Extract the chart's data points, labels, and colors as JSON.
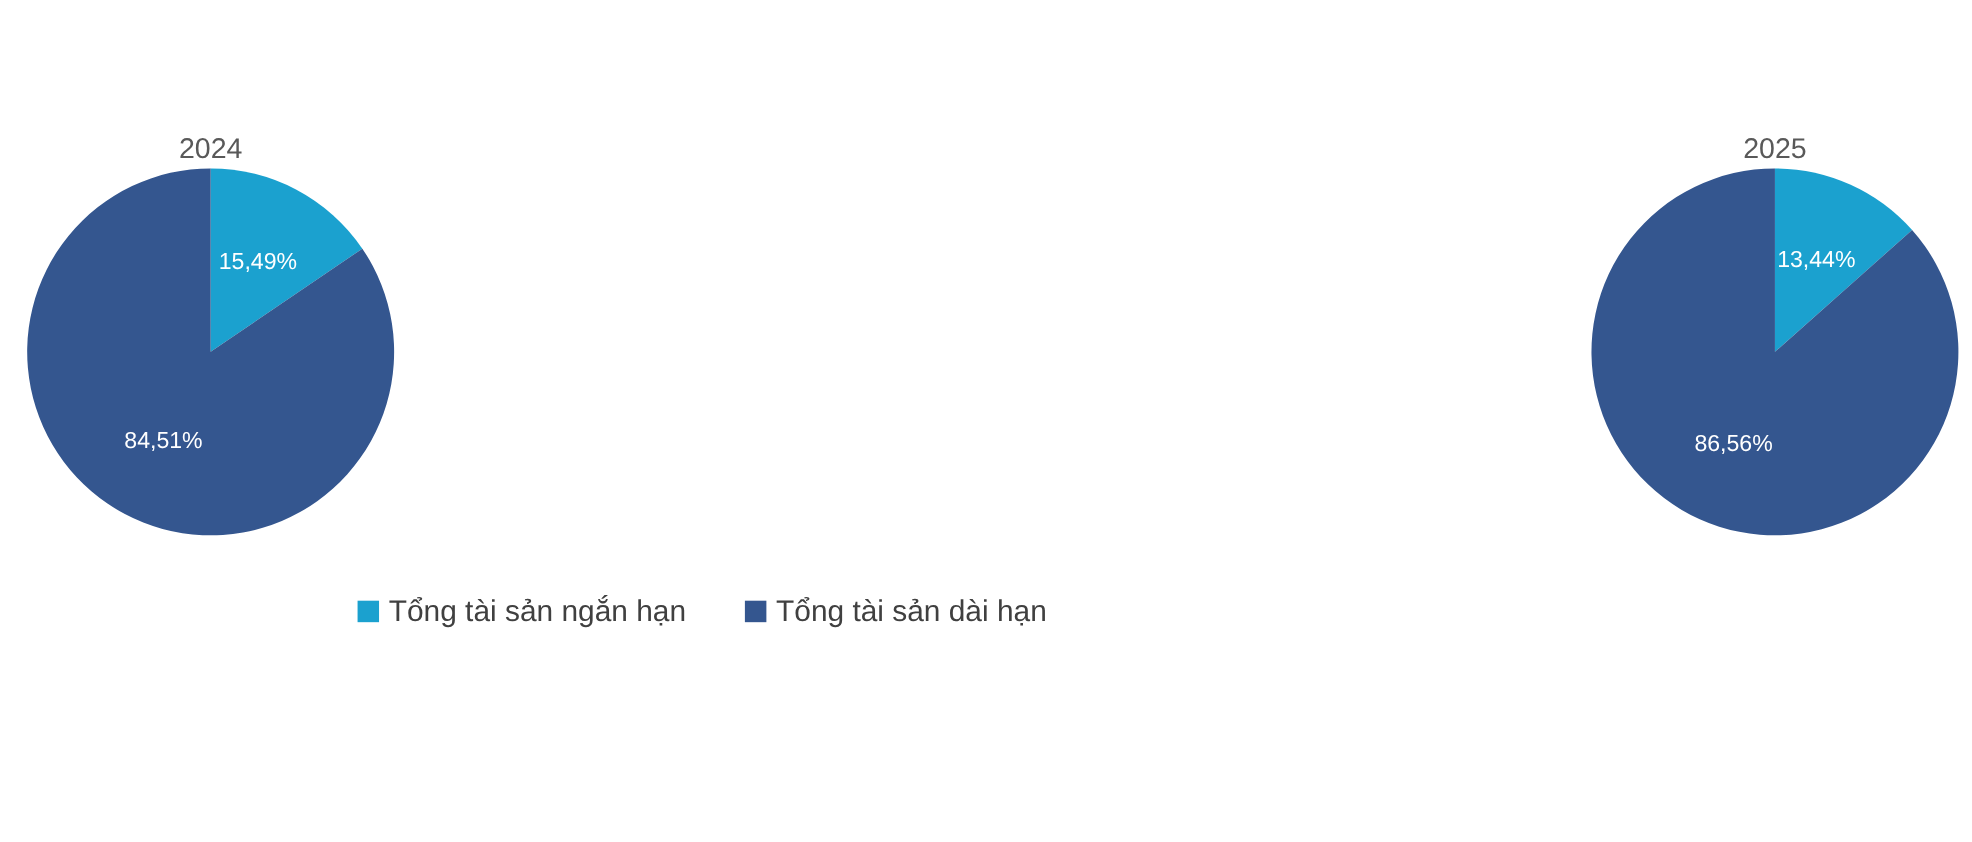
{
  "chart_data": [
    {
      "type": "pie",
      "title": "2024",
      "categories": [
        "Tổng tài sản ngắn hạn",
        "Tổng tài sản dài hạn"
      ],
      "values": [
        15.49,
        84.51
      ],
      "colors": [
        "#1ba1cf",
        "#34568f"
      ],
      "value_labels": [
        "15,49%",
        "84,51%"
      ],
      "legend": "bottom"
    },
    {
      "type": "pie",
      "title": "2025",
      "categories": [
        null,
        null
      ],
      "values": [
        13.44,
        86.56
      ],
      "colors": [
        "#1ba1cf",
        "#34568f"
      ],
      "value_labels": [
        "13,44%",
        "86,56%"
      ]
    }
  ]
}
